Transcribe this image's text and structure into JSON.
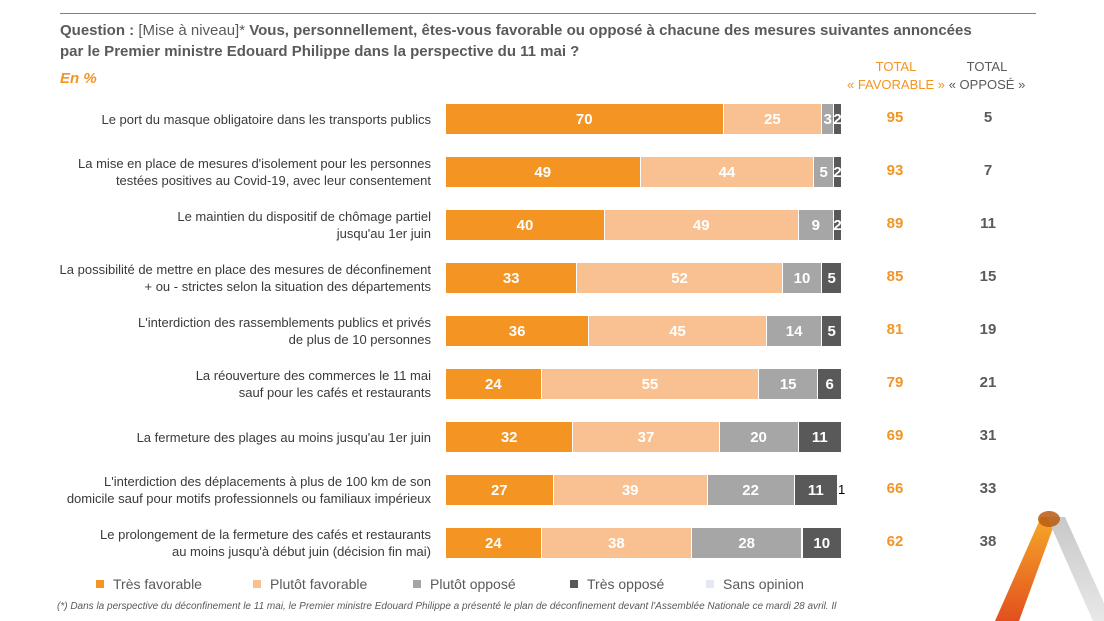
{
  "header": {
    "question_prefix": "Question :",
    "question_bracket": "[Mise à niveau]*",
    "question_text": "Vous, personnellement, êtes-vous favorable ou opposé à chacune des mesures suivantes annoncées par le Premier ministre Edouard Philippe dans la perspective du 11 mai ?",
    "unit": "En %",
    "total_favorable_line1": "TOTAL",
    "total_favorable_line2": "« FAVORABLE »",
    "total_oppose_line1": "TOTAL",
    "total_oppose_line2": "« OPPOSÉ »"
  },
  "chart_data": {
    "type": "bar",
    "orientation": "horizontal",
    "stacked": true,
    "xlim": [
      0,
      100
    ],
    "series_names": [
      "Très favorable",
      "Plutôt favorable",
      "Plutôt opposé",
      "Très opposé",
      "Sans opinion"
    ],
    "colors": [
      "#f39423",
      "#f9c191",
      "#a6a6a6",
      "#595959",
      "#e4e9f1"
    ],
    "rows": [
      {
        "label_lines": [
          "Le port du masque obligatoire dans les transports publics"
        ],
        "values": [
          70,
          25,
          3,
          2,
          0
        ],
        "total_favorable": "95",
        "total_oppose": "5"
      },
      {
        "label_lines": [
          "La mise en place de mesures d'isolement pour les personnes",
          "testées positives au Covid-19, avec leur consentement"
        ],
        "values": [
          49,
          44,
          5,
          2,
          0
        ],
        "total_favorable": "93",
        "total_oppose": "7"
      },
      {
        "label_lines": [
          "Le maintien du dispositif de chômage partiel",
          "jusqu'au 1er juin"
        ],
        "values": [
          40,
          49,
          9,
          2,
          0
        ],
        "total_favorable": "89",
        "total_oppose": "11"
      },
      {
        "label_lines": [
          "La possibilité de mettre en place des mesures de déconfinement",
          "+ ou - strictes selon la situation des départements"
        ],
        "values": [
          33,
          52,
          10,
          5,
          0
        ],
        "total_favorable": "85",
        "total_oppose": "15"
      },
      {
        "label_lines": [
          "L'interdiction des rassemblements publics et privés",
          "de plus de 10 personnes"
        ],
        "values": [
          36,
          45,
          14,
          5,
          0
        ],
        "total_favorable": "81",
        "total_oppose": "19"
      },
      {
        "label_lines": [
          "La réouverture des commerces le 11 mai",
          "sauf pour les cafés et restaurants"
        ],
        "values": [
          24,
          55,
          15,
          6,
          0
        ],
        "total_favorable": "79",
        "total_oppose": "21"
      },
      {
        "label_lines": [
          "La fermeture des plages au moins jusqu'au 1er juin"
        ],
        "values": [
          32,
          37,
          20,
          11,
          0
        ],
        "total_favorable": "69",
        "total_oppose": "31"
      },
      {
        "label_lines": [
          "L'interdiction des déplacements à plus de 100 km de son",
          "domicile sauf pour motifs professionnels ou familiaux impérieux"
        ],
        "values": [
          27,
          39,
          22,
          11,
          1
        ],
        "total_favorable": "66",
        "total_oppose": "33"
      },
      {
        "label_lines": [
          "Le prolongement de la fermeture des cafés et restaurants",
          "au moins jusqu'à début juin (décision fin mai)"
        ],
        "values": [
          24,
          38,
          28,
          10,
          0
        ],
        "total_favorable": "62",
        "total_oppose": "38"
      }
    ]
  },
  "legend": {
    "items": [
      {
        "label": "Très favorable",
        "color": "#f39423"
      },
      {
        "label": "Plutôt favorable",
        "color": "#f9c191"
      },
      {
        "label": "Plutôt opposé",
        "color": "#a6a6a6"
      },
      {
        "label": "Très opposé",
        "color": "#595959"
      },
      {
        "label": "Sans opinion",
        "color": "#e4e9f1"
      }
    ]
  },
  "footnote": "(*) Dans la perspective du déconfinement le 11 mai, le Premier ministre Edouard Philippe a présenté le plan de déconfinement devant l'Assemblée Nationale ce mardi 28 avril. Il"
}
